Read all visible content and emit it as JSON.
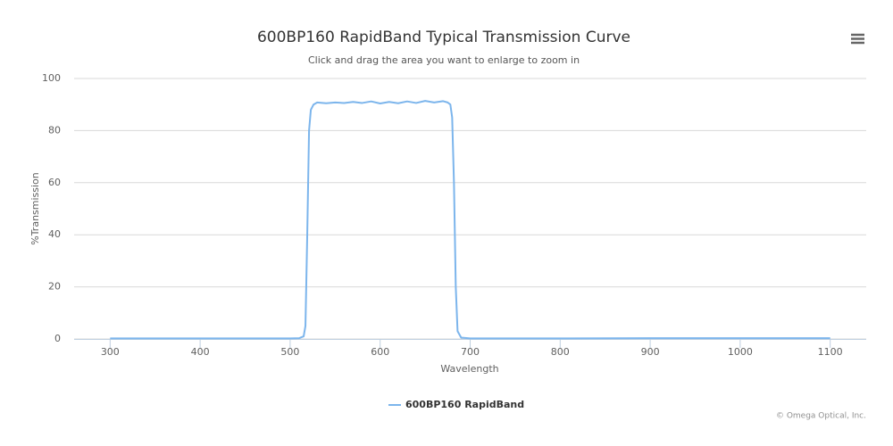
{
  "chart_data": {
    "type": "line",
    "title": "600BP160 RapidBand Typical Transmission Curve",
    "subtitle": "Click and drag the area you want to enlarge to zoom in",
    "x_label": "Wavelength",
    "y_label": "%Transmission",
    "credits": "© Omega Optical, Inc.",
    "x": [
      300,
      400,
      500,
      510,
      515,
      517,
      519,
      521,
      523,
      526,
      530,
      540,
      550,
      560,
      570,
      580,
      590,
      600,
      610,
      620,
      630,
      640,
      650,
      660,
      670,
      675,
      678,
      680,
      682,
      684,
      686,
      690,
      700,
      800,
      900,
      1000,
      1100
    ],
    "series": [
      {
        "name": "600BP160 RapidBand",
        "color": "#7cb5ec",
        "values": [
          0.2,
          0.2,
          0.2,
          0.3,
          1,
          5,
          40,
          80,
          88,
          90,
          90.8,
          90.5,
          90.8,
          90.6,
          91,
          90.6,
          91.2,
          90.4,
          91,
          90.5,
          91.2,
          90.6,
          91.4,
          90.8,
          91.3,
          90.8,
          90,
          85,
          60,
          20,
          3,
          0.5,
          0.2,
          0.2,
          0.3,
          0.3,
          0.3
        ]
      }
    ],
    "xlim": [
      260,
      1140
    ],
    "xticks": [
      300,
      400,
      500,
      600,
      700,
      800,
      900,
      1000,
      1100
    ],
    "ylim": [
      0,
      100
    ],
    "yticks": [
      0,
      20,
      40,
      60,
      80,
      100
    ],
    "grid": true
  }
}
